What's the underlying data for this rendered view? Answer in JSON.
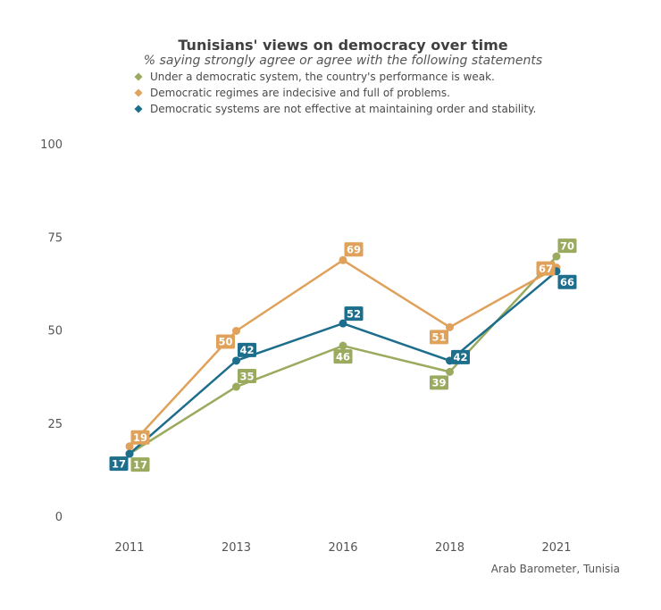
{
  "chart_data": {
    "type": "line",
    "title": "Tunisians' views on democracy over time",
    "subtitle": "% saying strongly agree or agree with the following statements",
    "source": "Arab Barometer, Tunisia",
    "categories": [
      "2011",
      "2013",
      "2016",
      "2018",
      "2021"
    ],
    "y_ticks": [
      0,
      25,
      50,
      75,
      100
    ],
    "ylim": [
      0,
      100
    ],
    "grid": false,
    "legend_position": "top",
    "series": [
      {
        "name": "Under a democratic system, the country's performance is weak.",
        "color": "#9aaa5e",
        "values": [
          17,
          35,
          46,
          39,
          70
        ],
        "labels": [
          "17",
          "35",
          "46",
          "39",
          "70"
        ]
      },
      {
        "name": "Democratic regimes are indecisive and full of problems.",
        "color": "#e0a15a",
        "values": [
          19,
          50,
          69,
          51,
          67
        ],
        "labels": [
          "19",
          "50",
          "69",
          "51",
          "67"
        ]
      },
      {
        "name": "Democratic systems are not effective at maintaining order and stability.",
        "color": "#1c6e8c",
        "values": [
          17,
          42,
          52,
          42,
          66
        ],
        "labels": [
          "17",
          "42",
          "52",
          "42",
          "66"
        ]
      }
    ]
  }
}
